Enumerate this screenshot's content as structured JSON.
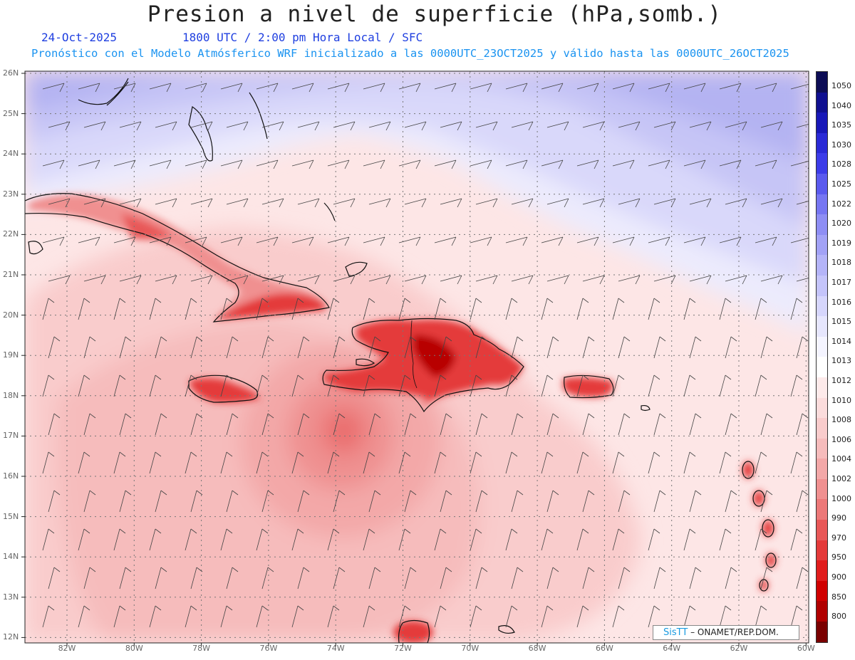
{
  "header": {
    "title": "Presion a nivel de superficie (hPa,somb.)",
    "date": "24-Oct-2025",
    "time": "1800 UTC / 2:00 pm Hora Local / SFC",
    "forecast_info": "Pronóstico con el Modelo Atmósferico WRF inicializado a las 0000UTC_23OCT2025 y válido hasta las  0000UTC_26OCT2025"
  },
  "map": {
    "lat_labels": [
      "26N",
      "25N",
      "24N",
      "23N",
      "22N",
      "21N",
      "20N",
      "19N",
      "18N",
      "17N",
      "16N",
      "15N",
      "14N",
      "13N",
      "12N"
    ],
    "lon_labels": [
      "82W",
      "80W",
      "78W",
      "76W",
      "74W",
      "72W",
      "70W",
      "68W",
      "66W",
      "64W",
      "62W",
      "60W"
    ],
    "land_color": "#e8231e",
    "high_pressure_color": "#b8b8f4",
    "low_pressure_color": "#f6b8b8"
  },
  "legend": {
    "levels": [
      "1050",
      "1040",
      "1035",
      "1030",
      "1028",
      "1025",
      "1022",
      "1020",
      "1019",
      "1018",
      "1017",
      "1016",
      "1015",
      "1014",
      "1013",
      "1012",
      "1010",
      "1008",
      "1006",
      "1004",
      "1002",
      "1000",
      "990",
      "970",
      "950",
      "900",
      "850",
      "800"
    ],
    "colors": [
      "#0d0d55",
      "#101090",
      "#1818b8",
      "#2a2ad6",
      "#3c3ce8",
      "#5a5aee",
      "#7676f2",
      "#8e8ef4",
      "#a2a2f6",
      "#b4b4f8",
      "#c4c4fa",
      "#d6d6fc",
      "#e6e6fd",
      "#f4f4ff",
      "#ffffff",
      "#fdeaea",
      "#fbdcdc",
      "#f9cccc",
      "#f6bcbc",
      "#f3a8a8",
      "#f09090",
      "#ec7878",
      "#e85858",
      "#e43a3a",
      "#e01c1c",
      "#d00000",
      "#b00000",
      "#7a0000"
    ]
  },
  "credit": {
    "brand": "SisTT",
    "org": " – ONAMET/REP.DOM."
  }
}
